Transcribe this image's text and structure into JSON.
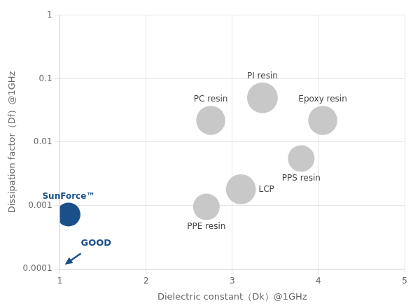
{
  "chart_data": {
    "type": "bubble",
    "xlabel": "Dielectric constant（Dk）@1GHz",
    "ylabel": "Dissipation factor（Df）@1GHz",
    "log": "y",
    "grid": true,
    "xlim": [
      1,
      5
    ],
    "xticks": [
      1,
      2,
      3,
      4,
      5
    ],
    "ylim": [
      0.0001,
      1
    ],
    "yticks": [
      0.0001,
      0.001,
      0.01,
      0.1,
      1
    ],
    "points": [
      {
        "label": "SunForce™",
        "x": 1.1,
        "y": 0.00072,
        "size": 600,
        "color": "#1a4f8a"
      },
      {
        "label": "PC resin",
        "x": 2.75,
        "y": 0.022,
        "size": 900,
        "color": "#c8c8c8"
      },
      {
        "label": "PI resin",
        "x": 3.35,
        "y": 0.05,
        "size": 1000,
        "color": "#c8c8c8"
      },
      {
        "label": "Epoxy resin",
        "x": 4.05,
        "y": 0.022,
        "size": 900,
        "color": "#c8c8c8"
      },
      {
        "label": "PPS resin",
        "x": 3.8,
        "y": 0.0055,
        "size": 750,
        "color": "#c8c8c8"
      },
      {
        "label": "LCP",
        "x": 3.1,
        "y": 0.0018,
        "size": 950,
        "color": "#c8c8c8"
      },
      {
        "label": "PPE resin",
        "x": 2.7,
        "y": 0.00095,
        "size": 750,
        "color": "#c8c8c8"
      }
    ],
    "annotations": [
      {
        "text": "GOOD",
        "color": "#1a4f8a"
      }
    ]
  }
}
